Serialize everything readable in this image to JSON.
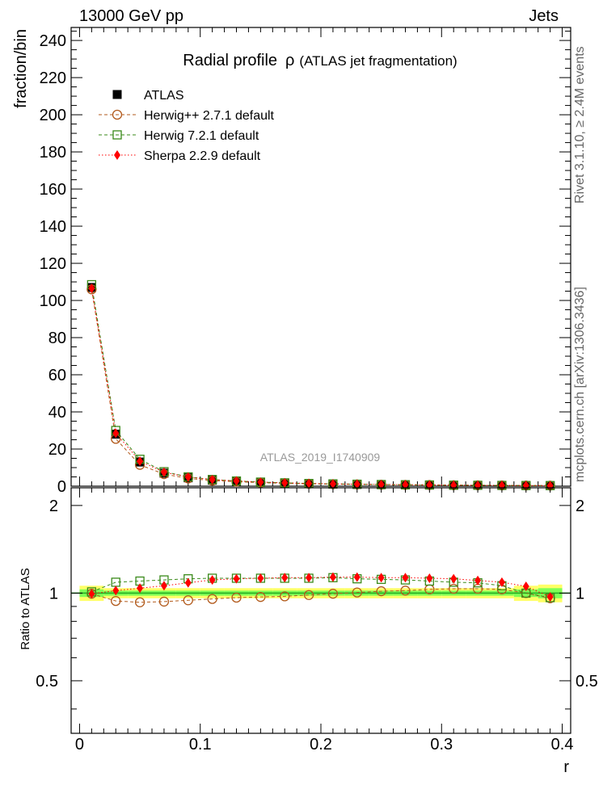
{
  "header": {
    "left": "13000 GeV pp",
    "right": "Jets"
  },
  "side_labels": {
    "top": "Rivet 3.1.10, ≥ 2.4M events",
    "bottom": "mcplots.cern.ch [arXiv:1306.3436]"
  },
  "colors": {
    "atlas": "#000000",
    "herwigpp": "#b25a1c",
    "herwig7": "#3a8a1a",
    "sherpa": "#ff0000",
    "band_inner": "#7fff55",
    "band_outer": "#ffff66",
    "unity_line": "#22aa22"
  },
  "chart_data": [
    {
      "type": "scatter",
      "title": "Radial profile",
      "title_symbol": "ρ",
      "title_suffix": "(ATLAS jet fragmentation)",
      "watermark": "ATLAS_2019_I1740909",
      "xlabel": "r",
      "ylabel": "fraction/bin",
      "xlim": [
        -0.007,
        0.407
      ],
      "ylim": [
        0,
        247
      ],
      "yticks": [
        0,
        20,
        40,
        60,
        80,
        100,
        120,
        140,
        160,
        180,
        200,
        220,
        240
      ],
      "x": [
        0.01,
        0.03,
        0.05,
        0.07,
        0.09,
        0.11,
        0.13,
        0.15,
        0.17,
        0.19,
        0.21,
        0.23,
        0.25,
        0.27,
        0.29,
        0.31,
        0.33,
        0.35,
        0.37,
        0.39
      ],
      "legend_position": "top-left",
      "series": [
        {
          "name": "ATLAS",
          "marker": "square-filled",
          "color_key": "atlas",
          "values": [
            107,
            28,
            13,
            7,
            4.5,
            3.2,
            2.5,
            2.0,
            1.6,
            1.3,
            1.1,
            0.95,
            0.8,
            0.7,
            0.6,
            0.5,
            0.45,
            0.4,
            0.35,
            0.3
          ]
        },
        {
          "name": "Herwig++ 2.7.1 default",
          "marker": "circle-open",
          "color_key": "herwigpp",
          "line": "dashed",
          "values": [
            106,
            25.5,
            11.5,
            6.5,
            4.2,
            3.0,
            2.4,
            1.9,
            1.55,
            1.28,
            1.1,
            0.96,
            0.82,
            0.71,
            0.62,
            0.52,
            0.46,
            0.41,
            0.35,
            0.29
          ]
        },
        {
          "name": "Herwig 7.2.1 default",
          "marker": "square-open",
          "color_key": "herwig7",
          "line": "dashed",
          "values": [
            108.5,
            30,
            14.5,
            7.8,
            5.0,
            3.6,
            2.8,
            2.2,
            1.8,
            1.45,
            1.25,
            1.06,
            0.89,
            0.78,
            0.66,
            0.55,
            0.49,
            0.43,
            0.35,
            0.29
          ]
        },
        {
          "name": "Sherpa 2.2.9 default",
          "marker": "diamond-filled",
          "color_key": "sherpa",
          "line": "dotted",
          "values": [
            106.5,
            28.5,
            13.5,
            7.5,
            4.9,
            3.55,
            2.8,
            2.2,
            1.8,
            1.45,
            1.25,
            1.07,
            0.9,
            0.79,
            0.67,
            0.56,
            0.5,
            0.44,
            0.37,
            0.29
          ]
        }
      ]
    },
    {
      "type": "scatter",
      "ylabel": "Ratio to ATLAS",
      "xlabel": "r",
      "xlim": [
        -0.007,
        0.407
      ],
      "ylim": [
        0.33,
        2.3
      ],
      "yticks": [
        0.5,
        1,
        2
      ],
      "xticks": [
        0,
        0.1,
        0.2,
        0.3,
        0.4
      ],
      "x": [
        0.01,
        0.03,
        0.05,
        0.07,
        0.09,
        0.11,
        0.13,
        0.15,
        0.17,
        0.19,
        0.21,
        0.23,
        0.25,
        0.27,
        0.29,
        0.31,
        0.33,
        0.35,
        0.37,
        0.39
      ],
      "band_inner": [
        0.03,
        0.02,
        0.02,
        0.02,
        0.02,
        0.02,
        0.02,
        0.02,
        0.02,
        0.02,
        0.02,
        0.02,
        0.02,
        0.02,
        0.02,
        0.02,
        0.02,
        0.02,
        0.03,
        0.04
      ],
      "band_outer": [
        0.06,
        0.04,
        0.04,
        0.04,
        0.04,
        0.04,
        0.04,
        0.04,
        0.04,
        0.04,
        0.04,
        0.04,
        0.04,
        0.04,
        0.04,
        0.04,
        0.04,
        0.04,
        0.06,
        0.07
      ],
      "series": [
        {
          "name": "Herwig++ 2.7.1 default",
          "marker": "circle-open",
          "color_key": "herwigpp",
          "line": "dashed",
          "values": [
            0.995,
            0.94,
            0.93,
            0.935,
            0.945,
            0.955,
            0.965,
            0.97,
            0.975,
            0.985,
            0.995,
            1.005,
            1.015,
            1.02,
            1.03,
            1.035,
            1.035,
            1.03,
            1.0,
            0.96
          ]
        },
        {
          "name": "Herwig 7.2.1 default",
          "marker": "square-open",
          "color_key": "herwig7",
          "line": "dashed",
          "values": [
            1.01,
            1.09,
            1.1,
            1.11,
            1.12,
            1.125,
            1.125,
            1.125,
            1.125,
            1.125,
            1.13,
            1.12,
            1.115,
            1.11,
            1.1,
            1.09,
            1.085,
            1.06,
            1.0,
            0.965
          ]
        },
        {
          "name": "Sherpa 2.2.9 default",
          "marker": "diamond-filled",
          "color_key": "sherpa",
          "line": "dotted",
          "values": [
            0.995,
            1.02,
            1.04,
            1.06,
            1.085,
            1.11,
            1.12,
            1.125,
            1.13,
            1.13,
            1.135,
            1.135,
            1.13,
            1.13,
            1.125,
            1.12,
            1.105,
            1.09,
            1.055,
            0.97
          ]
        }
      ]
    }
  ]
}
